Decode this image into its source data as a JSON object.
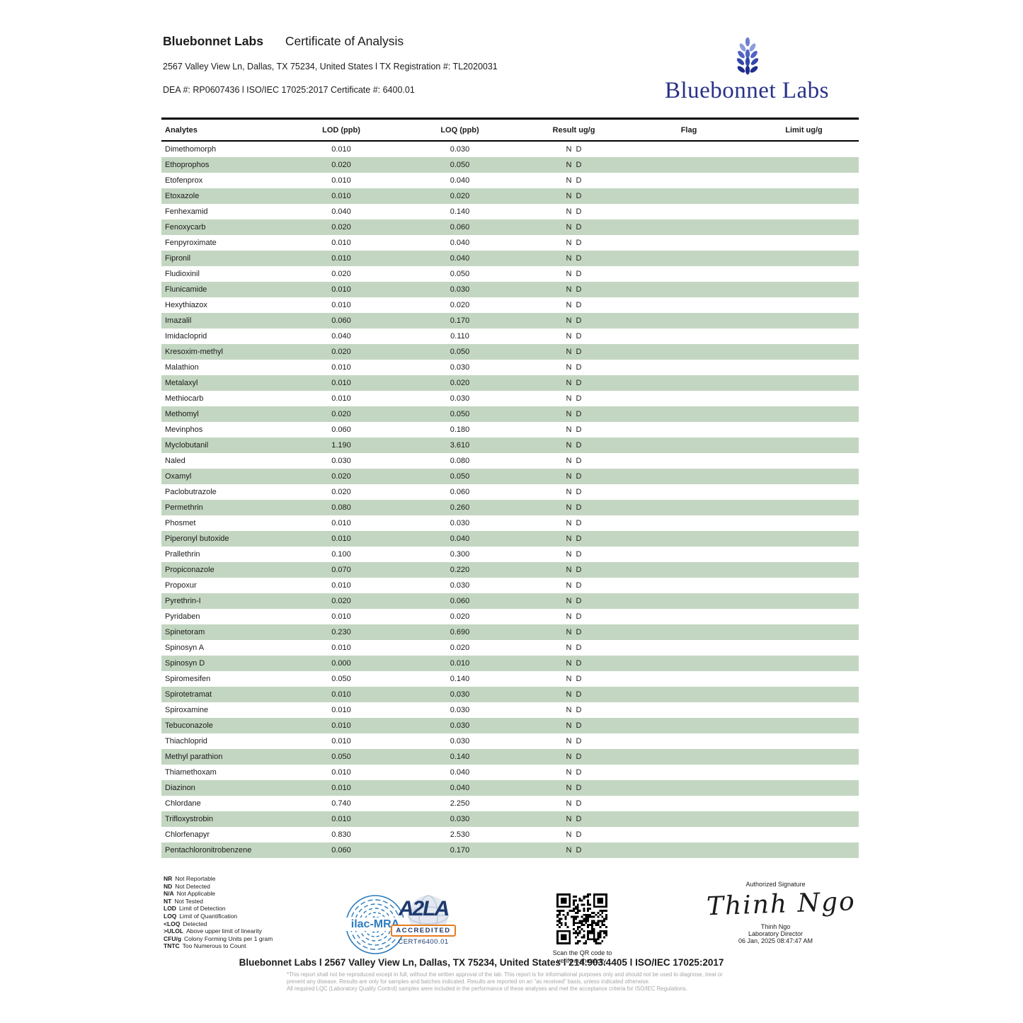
{
  "header": {
    "lab_name": "Bluebonnet Labs",
    "doc_title": "Certificate of Analysis",
    "address_line": "2567 Valley View Ln, Dallas, TX 75234, United States l TX Registration #: TL2020031",
    "dea_line": "DEA #: RP0607436 l ISO/IEC 17025:2017 Certificate #: 6400.01",
    "logo_text": "Bluebonnet Labs"
  },
  "table": {
    "columns": [
      "Analytes",
      "LOD (ppb)",
      "LOQ (ppb)",
      "Result ug/g",
      "Flag",
      "Limit ug/g"
    ],
    "row_alt_color": "#c3d6c1",
    "rows": [
      {
        "analyte": "Dimethomorph",
        "lod": "0.010",
        "loq": "0.030",
        "result": "N D",
        "flag": "",
        "limit": ""
      },
      {
        "analyte": "Ethoprophos",
        "lod": "0.020",
        "loq": "0.050",
        "result": "N D",
        "flag": "",
        "limit": ""
      },
      {
        "analyte": "Etofenprox",
        "lod": "0.010",
        "loq": "0.040",
        "result": "N D",
        "flag": "",
        "limit": ""
      },
      {
        "analyte": "Etoxazole",
        "lod": "0.010",
        "loq": "0.020",
        "result": "N D",
        "flag": "",
        "limit": ""
      },
      {
        "analyte": "Fenhexamid",
        "lod": "0.040",
        "loq": "0.140",
        "result": "N D",
        "flag": "",
        "limit": ""
      },
      {
        "analyte": "Fenoxycarb",
        "lod": "0.020",
        "loq": "0.060",
        "result": "N D",
        "flag": "",
        "limit": ""
      },
      {
        "analyte": "Fenpyroximate",
        "lod": "0.010",
        "loq": "0.040",
        "result": "N D",
        "flag": "",
        "limit": ""
      },
      {
        "analyte": "Fipronil",
        "lod": "0.010",
        "loq": "0.040",
        "result": "N D",
        "flag": "",
        "limit": ""
      },
      {
        "analyte": "Fludioxinil",
        "lod": "0.020",
        "loq": "0.050",
        "result": "N D",
        "flag": "",
        "limit": ""
      },
      {
        "analyte": "Flunicamide",
        "lod": "0.010",
        "loq": "0.030",
        "result": "N D",
        "flag": "",
        "limit": ""
      },
      {
        "analyte": "Hexythiazox",
        "lod": "0.010",
        "loq": "0.020",
        "result": "N D",
        "flag": "",
        "limit": ""
      },
      {
        "analyte": "Imazalil",
        "lod": "0.060",
        "loq": "0.170",
        "result": "N D",
        "flag": "",
        "limit": ""
      },
      {
        "analyte": "Imidacloprid",
        "lod": "0.040",
        "loq": "0.110",
        "result": "N D",
        "flag": "",
        "limit": ""
      },
      {
        "analyte": "Kresoxim-methyl",
        "lod": "0.020",
        "loq": "0.050",
        "result": "N D",
        "flag": "",
        "limit": ""
      },
      {
        "analyte": "Malathion",
        "lod": "0.010",
        "loq": "0.030",
        "result": "N D",
        "flag": "",
        "limit": ""
      },
      {
        "analyte": "Metalaxyl",
        "lod": "0.010",
        "loq": "0.020",
        "result": "N D",
        "flag": "",
        "limit": ""
      },
      {
        "analyte": "Methiocarb",
        "lod": "0.010",
        "loq": "0.030",
        "result": "N D",
        "flag": "",
        "limit": ""
      },
      {
        "analyte": "Methomyl",
        "lod": "0.020",
        "loq": "0.050",
        "result": "N D",
        "flag": "",
        "limit": ""
      },
      {
        "analyte": "Mevinphos",
        "lod": "0.060",
        "loq": "0.180",
        "result": "N D",
        "flag": "",
        "limit": ""
      },
      {
        "analyte": "Myclobutanil",
        "lod": "1.190",
        "loq": "3.610",
        "result": "N D",
        "flag": "",
        "limit": ""
      },
      {
        "analyte": "Naled",
        "lod": "0.030",
        "loq": "0.080",
        "result": "N D",
        "flag": "",
        "limit": ""
      },
      {
        "analyte": "Oxamyl",
        "lod": "0.020",
        "loq": "0.050",
        "result": "N D",
        "flag": "",
        "limit": ""
      },
      {
        "analyte": "Paclobutrazole",
        "lod": "0.020",
        "loq": "0.060",
        "result": "N D",
        "flag": "",
        "limit": ""
      },
      {
        "analyte": "Permethrin",
        "lod": "0.080",
        "loq": "0.260",
        "result": "N D",
        "flag": "",
        "limit": ""
      },
      {
        "analyte": "Phosmet",
        "lod": "0.010",
        "loq": "0.030",
        "result": "N D",
        "flag": "",
        "limit": ""
      },
      {
        "analyte": "Piperonyl butoxide",
        "lod": "0.010",
        "loq": "0.040",
        "result": "N D",
        "flag": "",
        "limit": ""
      },
      {
        "analyte": "Prallethrin",
        "lod": "0.100",
        "loq": "0.300",
        "result": "N D",
        "flag": "",
        "limit": ""
      },
      {
        "analyte": "Propiconazole",
        "lod": "0.070",
        "loq": "0.220",
        "result": "N D",
        "flag": "",
        "limit": ""
      },
      {
        "analyte": "Propoxur",
        "lod": "0.010",
        "loq": "0.030",
        "result": "N D",
        "flag": "",
        "limit": ""
      },
      {
        "analyte": "Pyrethrin-I",
        "lod": "0.020",
        "loq": "0.060",
        "result": "N D",
        "flag": "",
        "limit": ""
      },
      {
        "analyte": "Pyridaben",
        "lod": "0.010",
        "loq": "0.020",
        "result": "N D",
        "flag": "",
        "limit": ""
      },
      {
        "analyte": "Spinetoram",
        "lod": "0.230",
        "loq": "0.690",
        "result": "N D",
        "flag": "",
        "limit": ""
      },
      {
        "analyte": "Spinosyn A",
        "lod": "0.010",
        "loq": "0.020",
        "result": "N D",
        "flag": "",
        "limit": ""
      },
      {
        "analyte": "Spinosyn D",
        "lod": "0.000",
        "loq": "0.010",
        "result": "N D",
        "flag": "",
        "limit": ""
      },
      {
        "analyte": "Spiromesifen",
        "lod": "0.050",
        "loq": "0.140",
        "result": "N D",
        "flag": "",
        "limit": ""
      },
      {
        "analyte": "Spirotetramat",
        "lod": "0.010",
        "loq": "0.030",
        "result": "N D",
        "flag": "",
        "limit": ""
      },
      {
        "analyte": "Spiroxamine",
        "lod": "0.010",
        "loq": "0.030",
        "result": "N D",
        "flag": "",
        "limit": ""
      },
      {
        "analyte": "Tebuconazole",
        "lod": "0.010",
        "loq": "0.030",
        "result": "N D",
        "flag": "",
        "limit": ""
      },
      {
        "analyte": "Thiachloprid",
        "lod": "0.010",
        "loq": "0.030",
        "result": "N D",
        "flag": "",
        "limit": ""
      },
      {
        "analyte": "Methyl parathion",
        "lod": "0.050",
        "loq": "0.140",
        "result": "N D",
        "flag": "",
        "limit": ""
      },
      {
        "analyte": "Thiamethoxam",
        "lod": "0.010",
        "loq": "0.040",
        "result": "N D",
        "flag": "",
        "limit": ""
      },
      {
        "analyte": "Diazinon",
        "lod": "0.010",
        "loq": "0.040",
        "result": "N D",
        "flag": "",
        "limit": ""
      },
      {
        "analyte": "Chlordane",
        "lod": "0.740",
        "loq": "2.250",
        "result": "N D",
        "flag": "",
        "limit": ""
      },
      {
        "analyte": "Trifloxystrobin",
        "lod": "0.010",
        "loq": "0.030",
        "result": "N D",
        "flag": "",
        "limit": ""
      },
      {
        "analyte": "Chlorfenapyr",
        "lod": "0.830",
        "loq": "2.530",
        "result": "N D",
        "flag": "",
        "limit": ""
      },
      {
        "analyte": "Pentachloronitrobenzene",
        "lod": "0.060",
        "loq": "0.170",
        "result": "N D",
        "flag": "",
        "limit": ""
      }
    ]
  },
  "legend": {
    "items": [
      {
        "abbr": "NR",
        "desc": "Not Reportable"
      },
      {
        "abbr": "ND",
        "desc": "Not Detected"
      },
      {
        "abbr": "N/A",
        "desc": "Not Applicable"
      },
      {
        "abbr": "NT",
        "desc": "Not Tested"
      },
      {
        "abbr": "LOD",
        "desc": "Limit of Detection"
      },
      {
        "abbr": "LOQ",
        "desc": "Limit of Quantification"
      },
      {
        "abbr": "<LOQ",
        "desc": "Detected"
      },
      {
        "abbr": ">ULOL",
        "desc": "Above upper limit of linearity"
      },
      {
        "abbr": "CFU/g",
        "desc": "Colony Forming Units per 1 gram"
      },
      {
        "abbr": "TNTC",
        "desc": "Too Numerous to Count"
      }
    ]
  },
  "accreditation": {
    "ilac_label": "ilac-MRA",
    "a2la_letters": "A2LA",
    "accredited_label": "ACCREDITED",
    "cert_label": "CERT#6400.01"
  },
  "qr": {
    "caption_line1": "Scan the QR code to",
    "caption_line2": "verify authenticity."
  },
  "signature": {
    "label": "Authorized Signature",
    "script": "Thinh Ngo",
    "name": "Thinh Ngo",
    "title": "Laboratory Director",
    "datetime": "06 Jan, 2025 08:47:47 AM"
  },
  "footer": {
    "bold_line": "Bluebonnet Labs l 2567 Valley View Ln, Dallas, TX 75234, United States l 214.903.4405 l ISO/IEC 17025:2017",
    "disclaimer_lines": [
      "*This report shall not be reproduced except in full, without the written approval of the lab. This report is for informational purposes only and should not be used to diagnose, treat or",
      "prevent any disease. Results are only for samples and batches indicated. Results are reported on an \"as received\" basis, unless indicated otherwise.",
      "All required LQC (Laboratory Quality Control) samples were included in the performance of these analyses and met the acceptance criteria for ISO/IEC Regulations."
    ]
  },
  "colors": {
    "row_stripe_green": "#c3d6c1",
    "logo_navy": "#283188",
    "a2la_navy": "#1d3a6e",
    "a2la_orange": "#e87c1e",
    "ilac_blue": "#2b7bbf"
  }
}
